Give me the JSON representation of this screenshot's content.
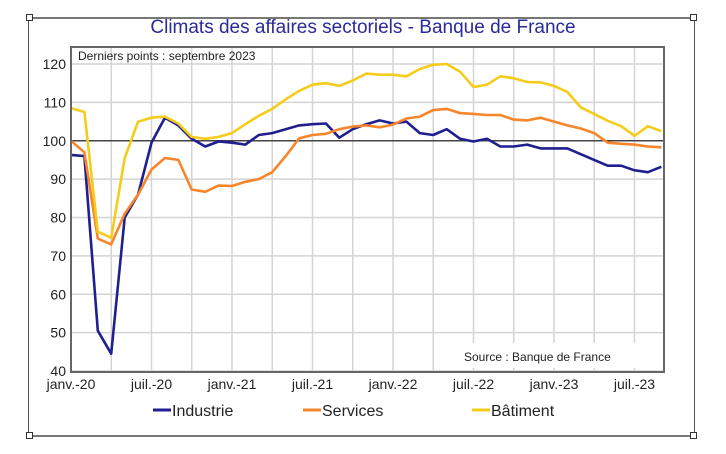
{
  "chart_data": {
    "type": "line",
    "title": "Climats des affaires sectoriels  - Banque de France",
    "annotation": "Derniers points : septembre 2023",
    "source": "Source : Banque de France",
    "reference_line": 100,
    "ylim": [
      40,
      120
    ],
    "yticks": [
      40,
      50,
      60,
      70,
      80,
      90,
      100,
      110,
      120
    ],
    "xtick_labels": [
      "janv.-20",
      "juil.-20",
      "janv.-21",
      "juil.-21",
      "janv.-22",
      "juil.-22",
      "janv.-23",
      "juil.-23"
    ],
    "x_start": "2020-01",
    "x_end": "2023-09",
    "frequency": "monthly",
    "grid": true,
    "legend_position": "bottom",
    "series": [
      {
        "name": "Industrie",
        "color": "#1f1f8f",
        "values": [
          96.3,
          96,
          50.5,
          44.5,
          80,
          86,
          99.5,
          106,
          104,
          100.5,
          98.5,
          99.8,
          99.5,
          99,
          101.5,
          102,
          103,
          104,
          104.3,
          104.5,
          100.8,
          103,
          104.3,
          105.3,
          104.5,
          105,
          102,
          101.5,
          103,
          100.5,
          99.8,
          100.5,
          98.5,
          98.5,
          99,
          98,
          98,
          98,
          96.5,
          95,
          93.5,
          93.5,
          92.3,
          91.8,
          93.2
        ]
      },
      {
        "name": "Services",
        "color": "#f7862a",
        "values": [
          100,
          97,
          74.5,
          73,
          81,
          86,
          92.5,
          95.5,
          95,
          87.3,
          86.7,
          88.3,
          88.2,
          89.3,
          90,
          91.8,
          96,
          100.6,
          101.5,
          101.8,
          103,
          103.7,
          104,
          103.5,
          104.2,
          105.8,
          106.3,
          108,
          108.3,
          107.2,
          107,
          106.7,
          106.7,
          105.5,
          105.3,
          106,
          105,
          104,
          103.2,
          102,
          99.5,
          99.2,
          99,
          98.5,
          98.3
        ]
      },
      {
        "name": "Bâtiment",
        "color": "#f5cc1a",
        "values": [
          108.5,
          107.5,
          76.3,
          74.7,
          95.5,
          105,
          106,
          106.3,
          104.5,
          101,
          100.5,
          101,
          102,
          104.3,
          106.5,
          108.3,
          110.8,
          113,
          114.6,
          115,
          114.3,
          115.7,
          117.5,
          117.2,
          117.2,
          116.8,
          118.7,
          119.8,
          120,
          118,
          114,
          114.6,
          116.8,
          116.3,
          115.3,
          115.2,
          114.3,
          112.7,
          108.7,
          107,
          105.2,
          103.8,
          101.3,
          103.8,
          102.5
        ]
      }
    ]
  }
}
